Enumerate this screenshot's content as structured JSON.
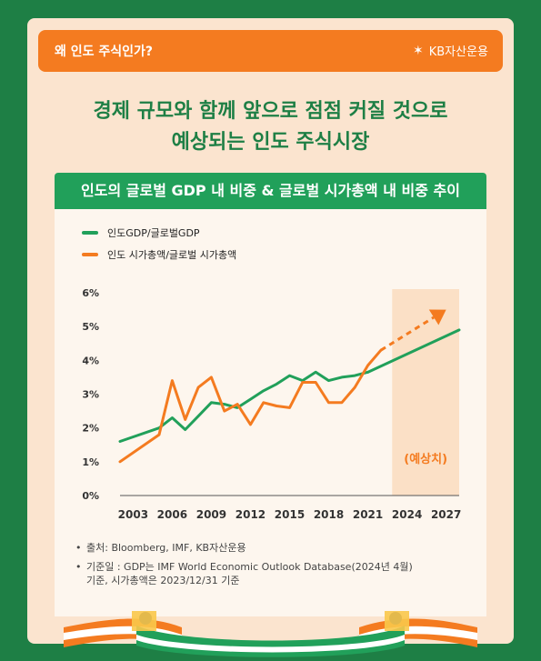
{
  "header": {
    "question": "왜 인도 주식인가?",
    "brand": "KB자산운용"
  },
  "headline": {
    "line1": "경제 규모와 함께 앞으로 점점 커질 것으로",
    "line2": "예상되는  인도 주식시장"
  },
  "banner": "인도의 글로벌 GDP 내 비중 & 글로벌 시가총액 내 비중 추이",
  "colors": {
    "green": "#21a05a",
    "orange": "#f47b20",
    "forecast_bg": "#fbe0c6"
  },
  "chart_data": {
    "type": "line",
    "x_tick_labels": [
      "2003",
      "2006",
      "2009",
      "2012",
      "2015",
      "2018",
      "2021",
      "2024",
      "2027"
    ],
    "y_tick_labels": [
      "0%",
      "1%",
      "2%",
      "3%",
      "4%",
      "5%",
      "6%"
    ],
    "ylim": [
      0,
      6
    ],
    "xlim": [
      2002,
      2028
    ],
    "forecast_label": "(예상치)",
    "forecast_start": 2023,
    "series": [
      {
        "name": "인도GDP/글로벌GDP",
        "color": "#21a05a",
        "points": [
          [
            2002,
            1.6
          ],
          [
            2005,
            2.0
          ],
          [
            2006,
            2.3
          ],
          [
            2007,
            1.95
          ],
          [
            2008,
            2.35
          ],
          [
            2009,
            2.75
          ],
          [
            2010,
            2.7
          ],
          [
            2011,
            2.6
          ],
          [
            2012,
            2.85
          ],
          [
            2013,
            3.1
          ],
          [
            2014,
            3.3
          ],
          [
            2015,
            3.55
          ],
          [
            2016,
            3.4
          ],
          [
            2017,
            3.65
          ],
          [
            2018,
            3.4
          ],
          [
            2019,
            3.5
          ],
          [
            2020,
            3.55
          ],
          [
            2021,
            3.65
          ]
        ],
        "forecast": [
          [
            2021,
            3.65
          ],
          [
            2028,
            4.9
          ]
        ]
      },
      {
        "name": "인도 시가총액/글로벌 시가총액",
        "color": "#f47b20",
        "points": [
          [
            2002,
            1.0
          ],
          [
            2005,
            1.8
          ],
          [
            2006,
            3.4
          ],
          [
            2007,
            2.25
          ],
          [
            2008,
            3.2
          ],
          [
            2009,
            3.5
          ],
          [
            2010,
            2.5
          ],
          [
            2011,
            2.7
          ],
          [
            2012,
            2.1
          ],
          [
            2013,
            2.75
          ],
          [
            2014,
            2.65
          ],
          [
            2015,
            2.6
          ],
          [
            2016,
            3.35
          ],
          [
            2017,
            3.35
          ],
          [
            2018,
            2.75
          ],
          [
            2019,
            2.75
          ],
          [
            2020,
            3.2
          ],
          [
            2021,
            3.85
          ],
          [
            2022,
            4.3
          ]
        ],
        "forecast": [
          [
            2022,
            4.3
          ],
          [
            2027,
            5.5
          ]
        ]
      }
    ]
  },
  "notes": [
    "출처: Bloomberg, IMF, KB자산운용",
    "기준일 : GDP는 IMF World Economic Outlook Database(2024년 4월)",
    "기준, 시가총액은 2023/12/31 기준"
  ]
}
